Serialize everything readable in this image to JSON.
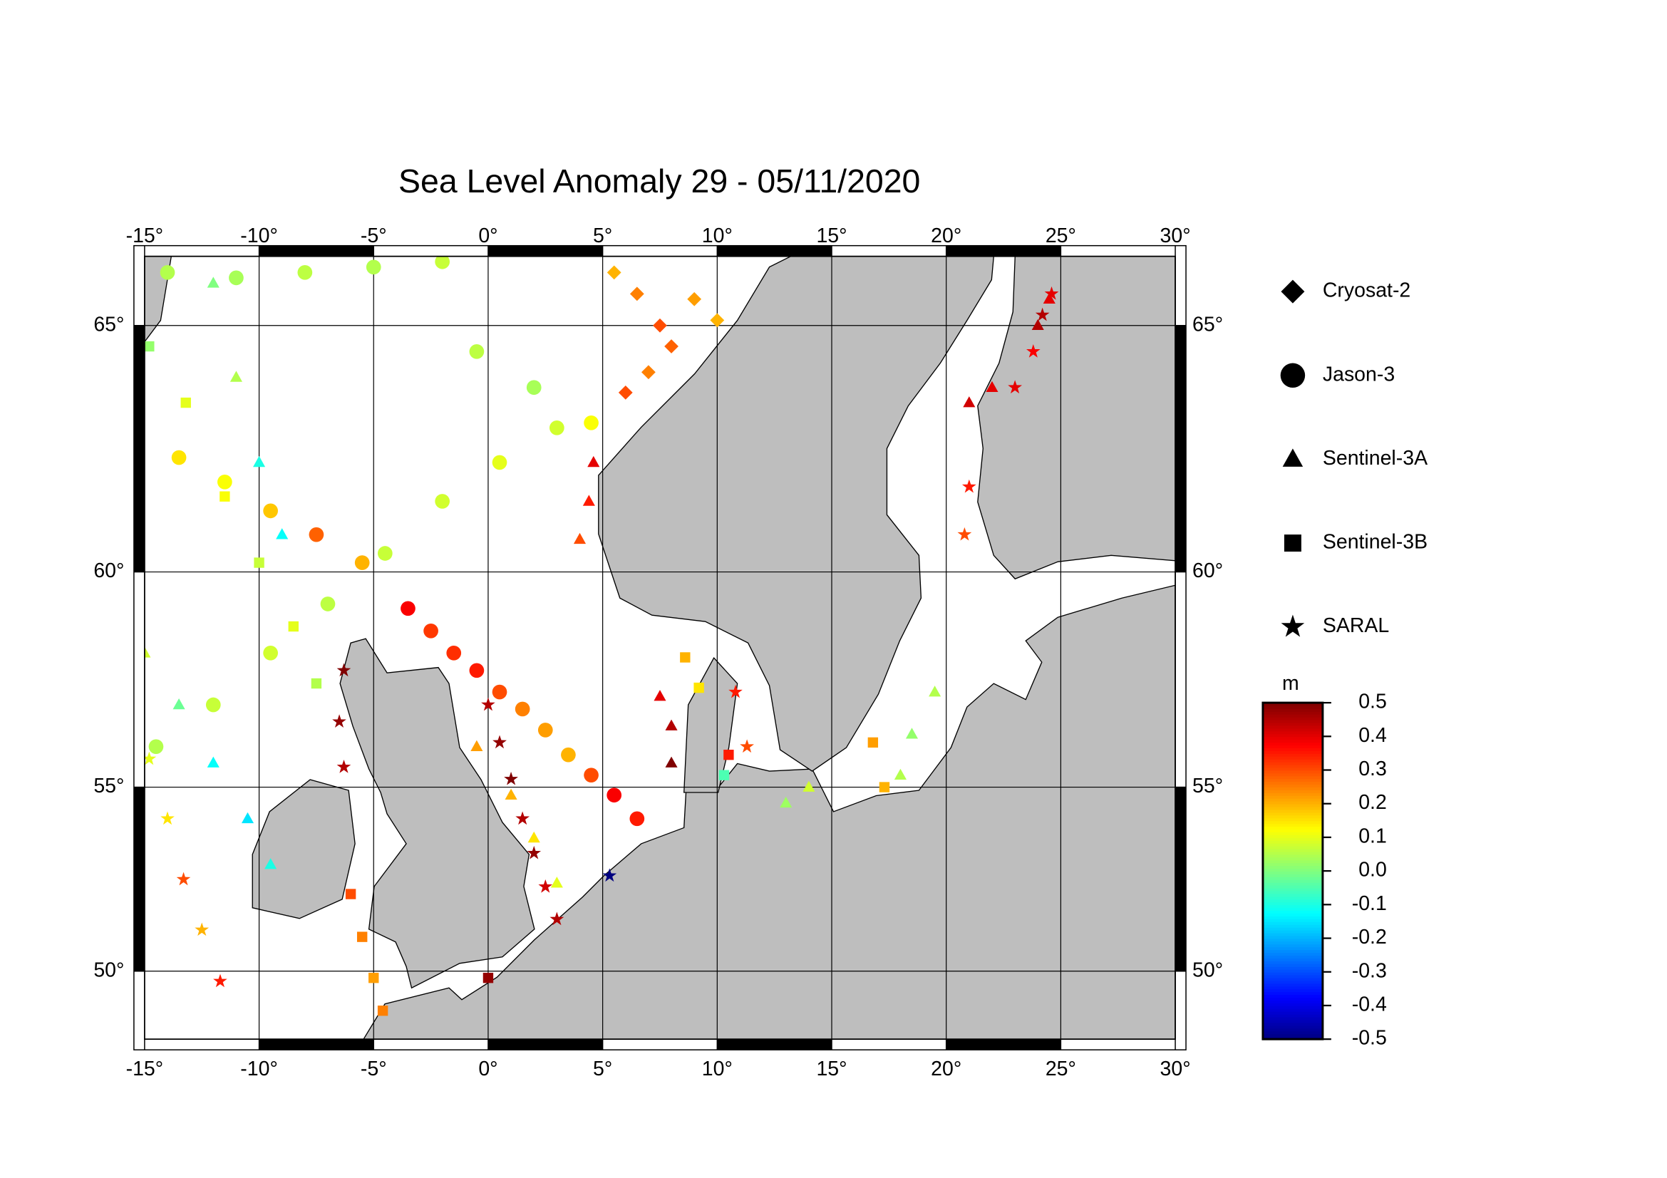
{
  "chart_data": {
    "type": "map",
    "title": "Sea Level Anomaly 29 - 05/11/2020",
    "xlim": [
      -15,
      30
    ],
    "ylim": [
      47.9,
      66.3
    ],
    "xticks": [
      {
        "value": -15,
        "label": "-15°"
      },
      {
        "value": -10,
        "label": "-10°"
      },
      {
        "value": -5,
        "label": "-5°"
      },
      {
        "value": 0,
        "label": "0°"
      },
      {
        "value": 5,
        "label": "5°"
      },
      {
        "value": 10,
        "label": "10°"
      },
      {
        "value": 15,
        "label": "15°"
      },
      {
        "value": 20,
        "label": "20°"
      },
      {
        "value": 25,
        "label": "25°"
      },
      {
        "value": 30,
        "label": "30°"
      }
    ],
    "yticks": [
      {
        "value": 50,
        "label": "50°"
      },
      {
        "value": 55,
        "label": "55°"
      },
      {
        "value": 60,
        "label": "60°"
      },
      {
        "value": 65,
        "label": "65°"
      }
    ],
    "grid": true,
    "colorbar": {
      "label": "m",
      "clim": [
        -0.5,
        0.5
      ],
      "colormap": "jet",
      "ticks": [
        0.5,
        0.4,
        0.3,
        0.2,
        0.1,
        {
          "value": 0,
          "label": "0.0"
        },
        -0.1,
        -0.2,
        -0.3,
        -0.4,
        -0.5
      ]
    },
    "series": [
      {
        "name": "Cryosat-2",
        "marker": "diamond",
        "lon": [
          5.5,
          6.5,
          7.5,
          8,
          7,
          6,
          9,
          10
        ],
        "lat": [
          66.0,
          65.6,
          65.0,
          64.6,
          64.1,
          63.7,
          65.5,
          65.1
        ],
        "values": [
          0.2,
          0.25,
          0.3,
          0.28,
          0.25,
          0.3,
          0.22,
          0.2
        ]
      },
      {
        "name": "Jason-3",
        "marker": "circle",
        "lon": [
          -2.5,
          -1.5,
          -0.5,
          0.5,
          1.5,
          2.5,
          3.5,
          4.5,
          5.5,
          6.5,
          -13.5,
          -11.5,
          -9.5,
          -7.5,
          -5.5,
          -3.5,
          -14.5,
          -12,
          -9.5,
          -7,
          -4.5,
          -2,
          0.5,
          3,
          4.5,
          -14,
          -11,
          -8,
          -5,
          -2,
          -0.5,
          2
        ],
        "lat": [
          58.7,
          58.2,
          57.8,
          57.3,
          56.9,
          56.4,
          55.8,
          55.3,
          54.8,
          54.2,
          62.4,
          61.9,
          61.3,
          60.8,
          60.2,
          59.2,
          56.0,
          57.0,
          58.2,
          59.3,
          60.4,
          61.5,
          62.3,
          63.0,
          63.1,
          66.0,
          65.9,
          66.0,
          66.1,
          66.2,
          64.5,
          63.8
        ],
        "values": [
          0.32,
          0.33,
          0.35,
          0.3,
          0.25,
          0.22,
          0.2,
          0.3,
          0.38,
          0.35,
          0.15,
          0.12,
          0.18,
          0.28,
          0.2,
          0.38,
          0.05,
          0.07,
          0.08,
          0.06,
          0.07,
          0.08,
          0.1,
          0.08,
          0.12,
          0.05,
          0.04,
          0.06,
          0.05,
          0.07,
          0.06,
          0.04
        ]
      },
      {
        "name": "Sentinel-3A",
        "marker": "triangle",
        "lon": [
          -15,
          -13.5,
          -12,
          -10.5,
          -9.5,
          -0.5,
          1,
          2,
          3,
          4.6,
          4.4,
          4.0,
          7.5,
          8,
          8,
          21,
          22,
          24,
          24.5,
          18,
          18.5,
          19.5,
          -12,
          -11,
          -10,
          -9,
          14,
          13
        ],
        "lat": [
          58.2,
          57.0,
          55.6,
          54.2,
          53.0,
          56.0,
          54.8,
          53.7,
          52.5,
          62.3,
          61.5,
          60.7,
          57.2,
          56.5,
          55.6,
          63.5,
          63.8,
          65.0,
          65.5,
          55.3,
          56.3,
          57.3,
          65.8,
          64.0,
          62.3,
          60.8,
          55.0,
          54.6
        ],
        "values": [
          0.08,
          -0.02,
          -0.12,
          -0.15,
          -0.1,
          0.22,
          0.2,
          0.15,
          0.1,
          0.4,
          0.35,
          0.3,
          0.4,
          0.45,
          0.5,
          0.42,
          0.4,
          0.45,
          0.4,
          0.05,
          0.02,
          0.05,
          0.0,
          0.05,
          -0.1,
          -0.12,
          0.08,
          0.03
        ]
      },
      {
        "name": "Sentinel-3B",
        "marker": "square",
        "lon": [
          -6,
          -5.5,
          -5,
          -4.6,
          -14.8,
          -13.2,
          -11.5,
          -10,
          -8.5,
          -7.5,
          16.8,
          17.3,
          8.6,
          9.2,
          0,
          10.5,
          10.3
        ],
        "lat": [
          52.2,
          51.0,
          49.8,
          48.8,
          64.6,
          63.5,
          61.6,
          60.2,
          58.8,
          57.5,
          56.1,
          55.0,
          58.1,
          57.4,
          49.8,
          55.8,
          55.3
        ],
        "values": [
          0.3,
          0.25,
          0.22,
          0.25,
          0.02,
          0.1,
          0.12,
          0.07,
          0.1,
          0.05,
          0.22,
          0.2,
          0.2,
          0.15,
          0.48,
          0.35,
          -0.05
        ]
      },
      {
        "name": "SARAL",
        "marker": "star",
        "lon": [
          0,
          0.5,
          1,
          1.5,
          2,
          2.5,
          3,
          5.3,
          -14.8,
          -14,
          -13.3,
          -12.5,
          -11.7,
          24.6,
          24.2,
          23.8,
          23,
          21,
          20.8,
          10.8,
          11.3,
          -6.3,
          -6.5,
          -6.3
        ],
        "lat": [
          57.0,
          56.1,
          55.2,
          54.2,
          53.3,
          52.4,
          51.5,
          52.7,
          55.7,
          54.2,
          52.6,
          51.2,
          49.7,
          65.6,
          65.2,
          64.5,
          63.8,
          61.8,
          60.8,
          57.3,
          56.0,
          57.8,
          56.6,
          55.5
        ],
        "values": [
          0.45,
          0.48,
          0.5,
          0.45,
          0.48,
          0.42,
          0.45,
          -0.5,
          0.1,
          0.15,
          0.3,
          0.2,
          0.35,
          0.4,
          0.45,
          0.38,
          0.4,
          0.35,
          0.3,
          0.35,
          0.3,
          0.5,
          0.48,
          0.45
        ]
      }
    ]
  }
}
